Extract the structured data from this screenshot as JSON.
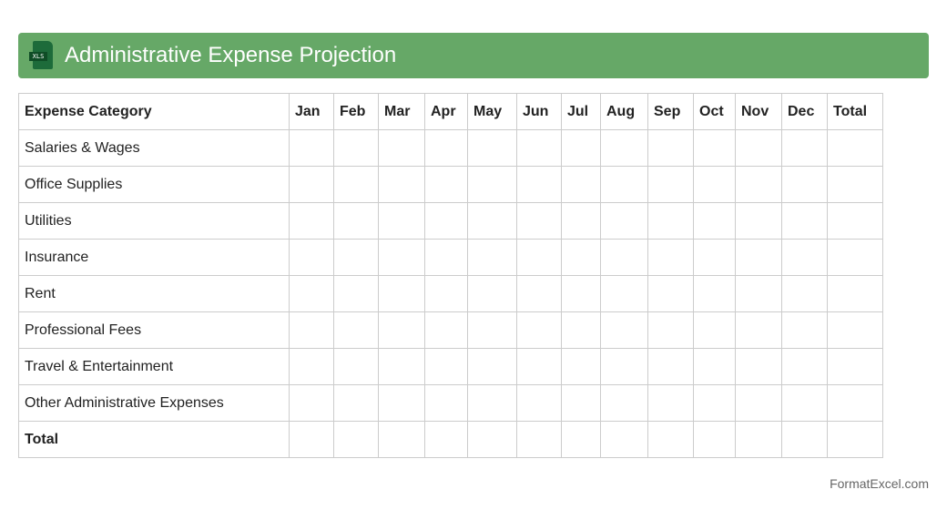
{
  "header": {
    "title": "Administrative Expense Projection",
    "icon": "xls-file-icon",
    "icon_label": "XLS",
    "color": "#66a867"
  },
  "table": {
    "columns": [
      "Expense Category",
      "Jan",
      "Feb",
      "Mar",
      "Apr",
      "May",
      "Jun",
      "Jul",
      "Aug",
      "Sep",
      "Oct",
      "Nov",
      "Dec",
      "Total"
    ],
    "rows": [
      "Salaries & Wages",
      "Office Supplies",
      "Utilities",
      "Insurance",
      "Rent",
      "Professional Fees",
      "Travel & Entertainment",
      "Other Administrative Expenses",
      "Total"
    ]
  },
  "footer": {
    "text": "FormatExcel.com"
  }
}
